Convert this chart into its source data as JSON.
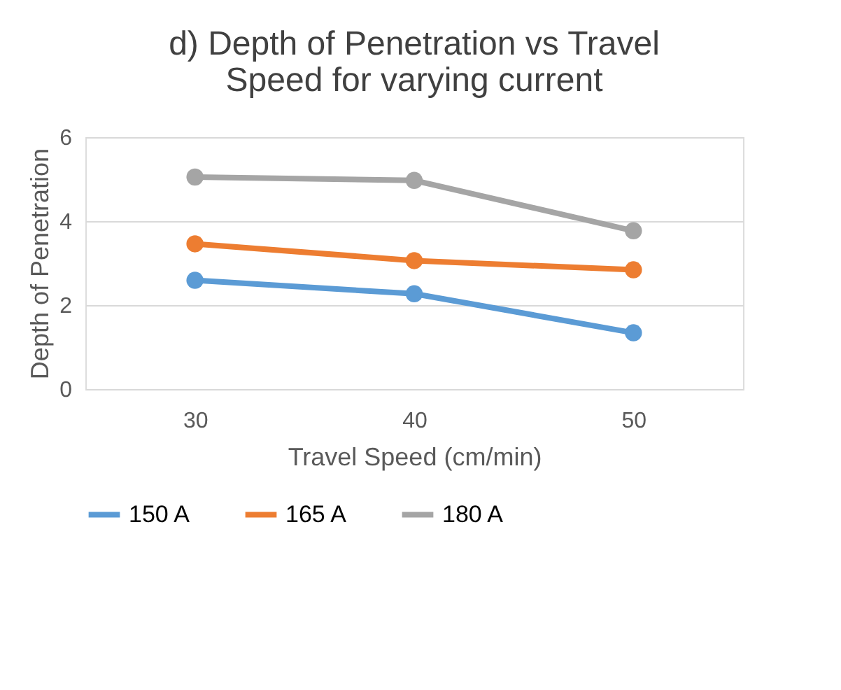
{
  "chart_data": {
    "type": "line",
    "title": "d) Depth of Penetration vs Travel Speed for varying current",
    "xlabel": "Travel Speed (cm/min)",
    "ylabel": "Depth of Penetration",
    "categories": [
      "30",
      "40",
      "50"
    ],
    "series": [
      {
        "name": "150 A",
        "color": "#5b9bd5",
        "values": [
          2.59,
          2.27,
          1.34
        ]
      },
      {
        "name": "165 A",
        "color": "#ed7d31",
        "values": [
          3.46,
          3.06,
          2.84
        ]
      },
      {
        "name": "180 A",
        "color": "#a5a5a5",
        "values": [
          5.05,
          4.97,
          3.77
        ]
      }
    ],
    "ylim": [
      0,
      6
    ],
    "yticks": [
      0,
      2,
      4,
      6
    ],
    "grid": "y",
    "legend": "bottom",
    "marker": "circle",
    "line_style": "solid"
  }
}
